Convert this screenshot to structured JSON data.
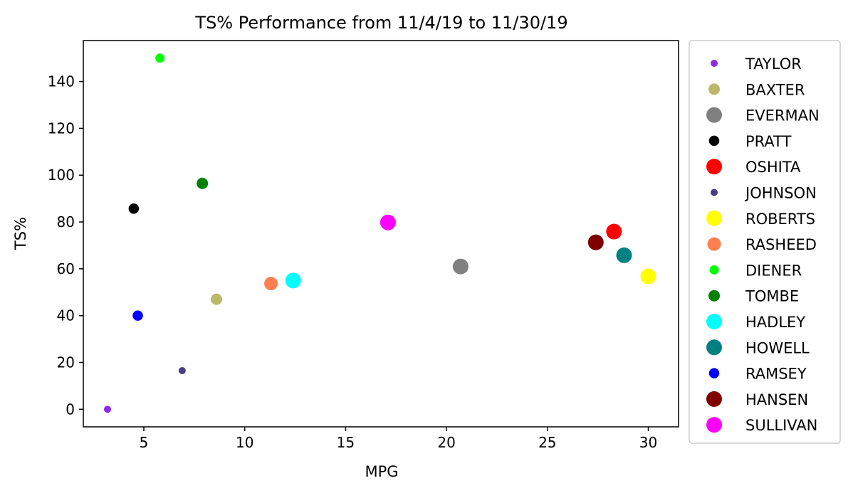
{
  "chart_data": {
    "type": "scatter",
    "title": "TS% Performance from 11/4/19 to 11/30/19",
    "xlabel": "MPG",
    "ylabel": "TS%",
    "xlim": [
      2,
      31.5
    ],
    "ylim": [
      -7.5,
      157.5
    ],
    "xticks": [
      5,
      10,
      15,
      20,
      25,
      30
    ],
    "yticks": [
      0,
      20,
      40,
      60,
      80,
      100,
      120,
      140
    ],
    "grid": false,
    "legend_position": "outside-right",
    "series": [
      {
        "name": "TAYLOR",
        "color": "#8a2be2",
        "size": 1,
        "x": 3.2,
        "y": 0
      },
      {
        "name": "BAXTER",
        "color": "#bdb76b",
        "size": 3,
        "x": 8.6,
        "y": 47
      },
      {
        "name": "EVERMAN",
        "color": "#808080",
        "size": 5,
        "x": 20.7,
        "y": 61
      },
      {
        "name": "PRATT",
        "color": "#000000",
        "size": 2.5,
        "x": 4.5,
        "y": 85.7
      },
      {
        "name": "OSHITA",
        "color": "#ff0000",
        "size": 5,
        "x": 28.3,
        "y": 75.9
      },
      {
        "name": "JOHNSON",
        "color": "#483d8b",
        "size": 1,
        "x": 6.9,
        "y": 16.5
      },
      {
        "name": "ROBERTS",
        "color": "#ffff00",
        "size": 5,
        "x": 30,
        "y": 56.8
      },
      {
        "name": "RASHEED",
        "color": "#ff7f50",
        "size": 4,
        "x": 11.3,
        "y": 53.7
      },
      {
        "name": "DIENER",
        "color": "#00ff00",
        "size": 2,
        "x": 5.8,
        "y": 150
      },
      {
        "name": "TOMBE",
        "color": "#008000",
        "size": 3,
        "x": 7.9,
        "y": 96.5
      },
      {
        "name": "HADLEY",
        "color": "#00ffff",
        "size": 5,
        "x": 12.4,
        "y": 55
      },
      {
        "name": "HOWELL",
        "color": "#008080",
        "size": 5,
        "x": 28.8,
        "y": 65.8
      },
      {
        "name": "RAMSEY",
        "color": "#0000ff",
        "size": 2.5,
        "x": 4.7,
        "y": 40
      },
      {
        "name": "HANSEN",
        "color": "#800000",
        "size": 5,
        "x": 27.4,
        "y": 71.3
      },
      {
        "name": "SULLIVAN",
        "color": "#ff00ff",
        "size": 5,
        "x": 17.1,
        "y": 79.8
      }
    ]
  }
}
